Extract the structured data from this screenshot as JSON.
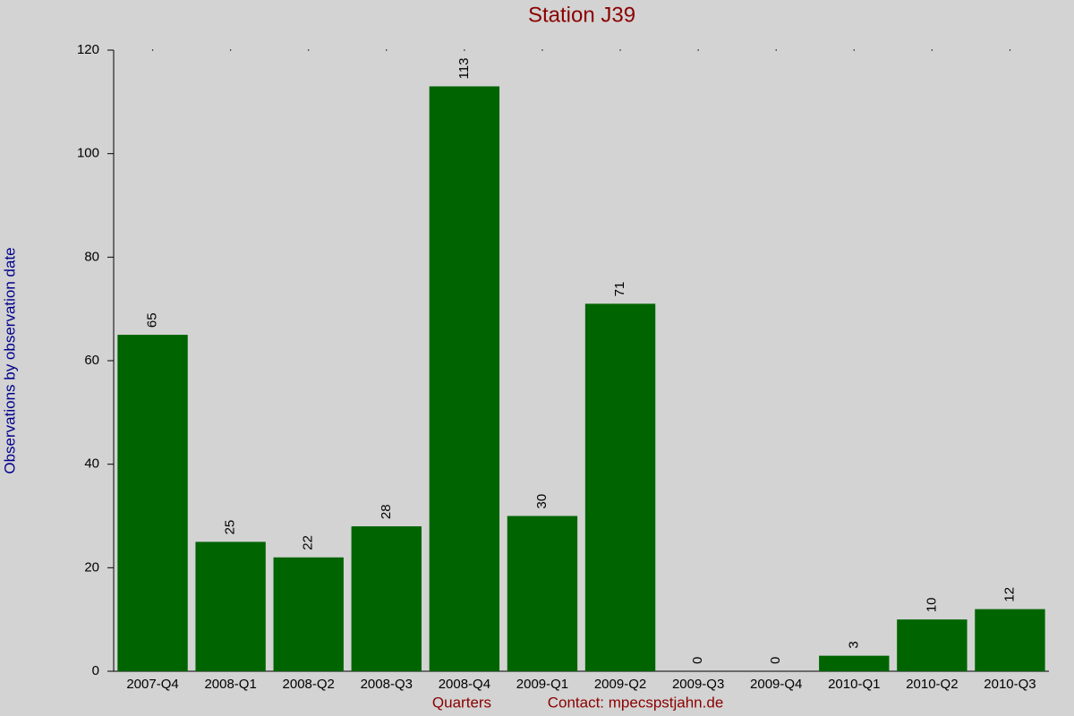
{
  "chart_data": {
    "type": "bar",
    "title": "Station J39",
    "y_label": "Observations by observation date",
    "x_label": "Quarters",
    "annotation": "Contact: mpecspstjahn.de",
    "categories": [
      "2007-Q4",
      "2008-Q1",
      "2008-Q2",
      "2008-Q3",
      "2008-Q4",
      "2009-Q1",
      "2009-Q2",
      "2009-Q3",
      "2009-Q4",
      "2010-Q1",
      "2010-Q2",
      "2010-Q3"
    ],
    "values": [
      65,
      25,
      22,
      28,
      113,
      30,
      71,
      0,
      0,
      3,
      10,
      12
    ],
    "color": "#006400",
    "ylim": [
      0,
      120
    ],
    "yticks": [
      0,
      20,
      40,
      60,
      80,
      100,
      120
    ],
    "grid": false
  }
}
